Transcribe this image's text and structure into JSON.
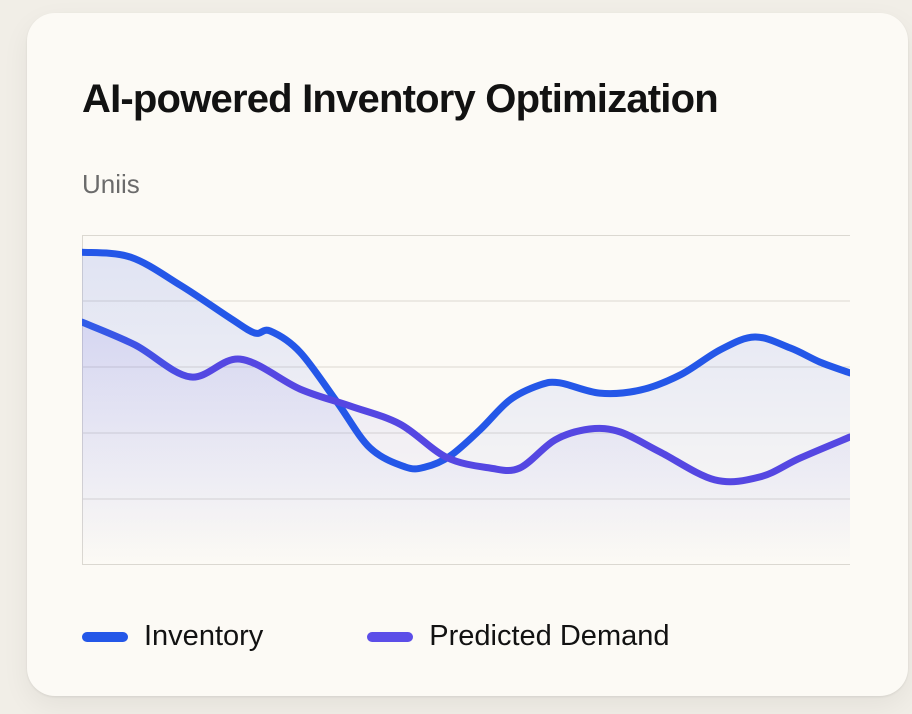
{
  "card": {
    "title": "AI-powered Inventory Optimization",
    "units_caption": "Uniis"
  },
  "colors": {
    "page_bg": "#f1eee7",
    "card_bg": "#fcfaf5",
    "title_text": "#121212",
    "caption_text": "#6b6b6b",
    "grid_line": "#dbd8d1",
    "inventory_line": "#2457e8",
    "predicted_line": "#5547e2",
    "predicted_line_start": "#2f5ce8",
    "inventory_area_tint": "rgba(86,116,233,0.17)",
    "predicted_area_tint": "rgba(100,92,230,0.13)"
  },
  "chart_data": {
    "type": "line",
    "title": "AI-powered Inventory Optimization",
    "ylabel": "Uniis",
    "xlabel": "",
    "x_range_percent": [
      0,
      100
    ],
    "y_range_units": [
      0,
      100
    ],
    "axis_tick_labels_visible": false,
    "grid": {
      "horizontal_lines": 6,
      "left_border": true,
      "right_border": false
    },
    "legend_position": "bottom",
    "line_width": 7,
    "smooth": true,
    "area_fill": true,
    "series": [
      {
        "name": "Inventory",
        "color": "#2457e8",
        "legend_color": "#2457e8",
        "gradient_stroke": false,
        "points": [
          [
            0,
            94.8
          ],
          [
            6.3,
            93.3
          ],
          [
            12.8,
            84.8
          ],
          [
            19.3,
            74.8
          ],
          [
            22.5,
            70.3
          ],
          [
            24.5,
            70.9
          ],
          [
            28.4,
            64.5
          ],
          [
            33.2,
            49.4
          ],
          [
            37.5,
            35.5
          ],
          [
            42.1,
            29.7
          ],
          [
            44.7,
            29.7
          ],
          [
            47.9,
            33.0
          ],
          [
            51.8,
            40.9
          ],
          [
            55.7,
            50.0
          ],
          [
            59.6,
            54.5
          ],
          [
            62.2,
            55.2
          ],
          [
            67.4,
            52.1
          ],
          [
            72.7,
            53.0
          ],
          [
            77.9,
            57.6
          ],
          [
            83.1,
            65.2
          ],
          [
            87.6,
            69.1
          ],
          [
            92.2,
            65.8
          ],
          [
            96.1,
            61.5
          ],
          [
            100,
            58.2
          ]
        ]
      },
      {
        "name": "Predicted Demand",
        "color": "#5547e2",
        "legend_color": "#5c4ee8",
        "gradient_stroke": true,
        "gradient_start_color": "#2f5ce8",
        "points": [
          [
            0,
            73.6
          ],
          [
            6.9,
            66.7
          ],
          [
            14.1,
            57.0
          ],
          [
            20.6,
            62.4
          ],
          [
            28.4,
            53.3
          ],
          [
            34.9,
            48.2
          ],
          [
            41.4,
            42.7
          ],
          [
            47.4,
            32.7
          ],
          [
            53.1,
            29.4
          ],
          [
            57.0,
            29.4
          ],
          [
            61.6,
            37.9
          ],
          [
            66.1,
            41.2
          ],
          [
            70.1,
            40.3
          ],
          [
            75.3,
            34.2
          ],
          [
            82.4,
            25.8
          ],
          [
            88.3,
            26.7
          ],
          [
            93.5,
            32.4
          ],
          [
            100,
            38.8
          ]
        ]
      }
    ]
  }
}
